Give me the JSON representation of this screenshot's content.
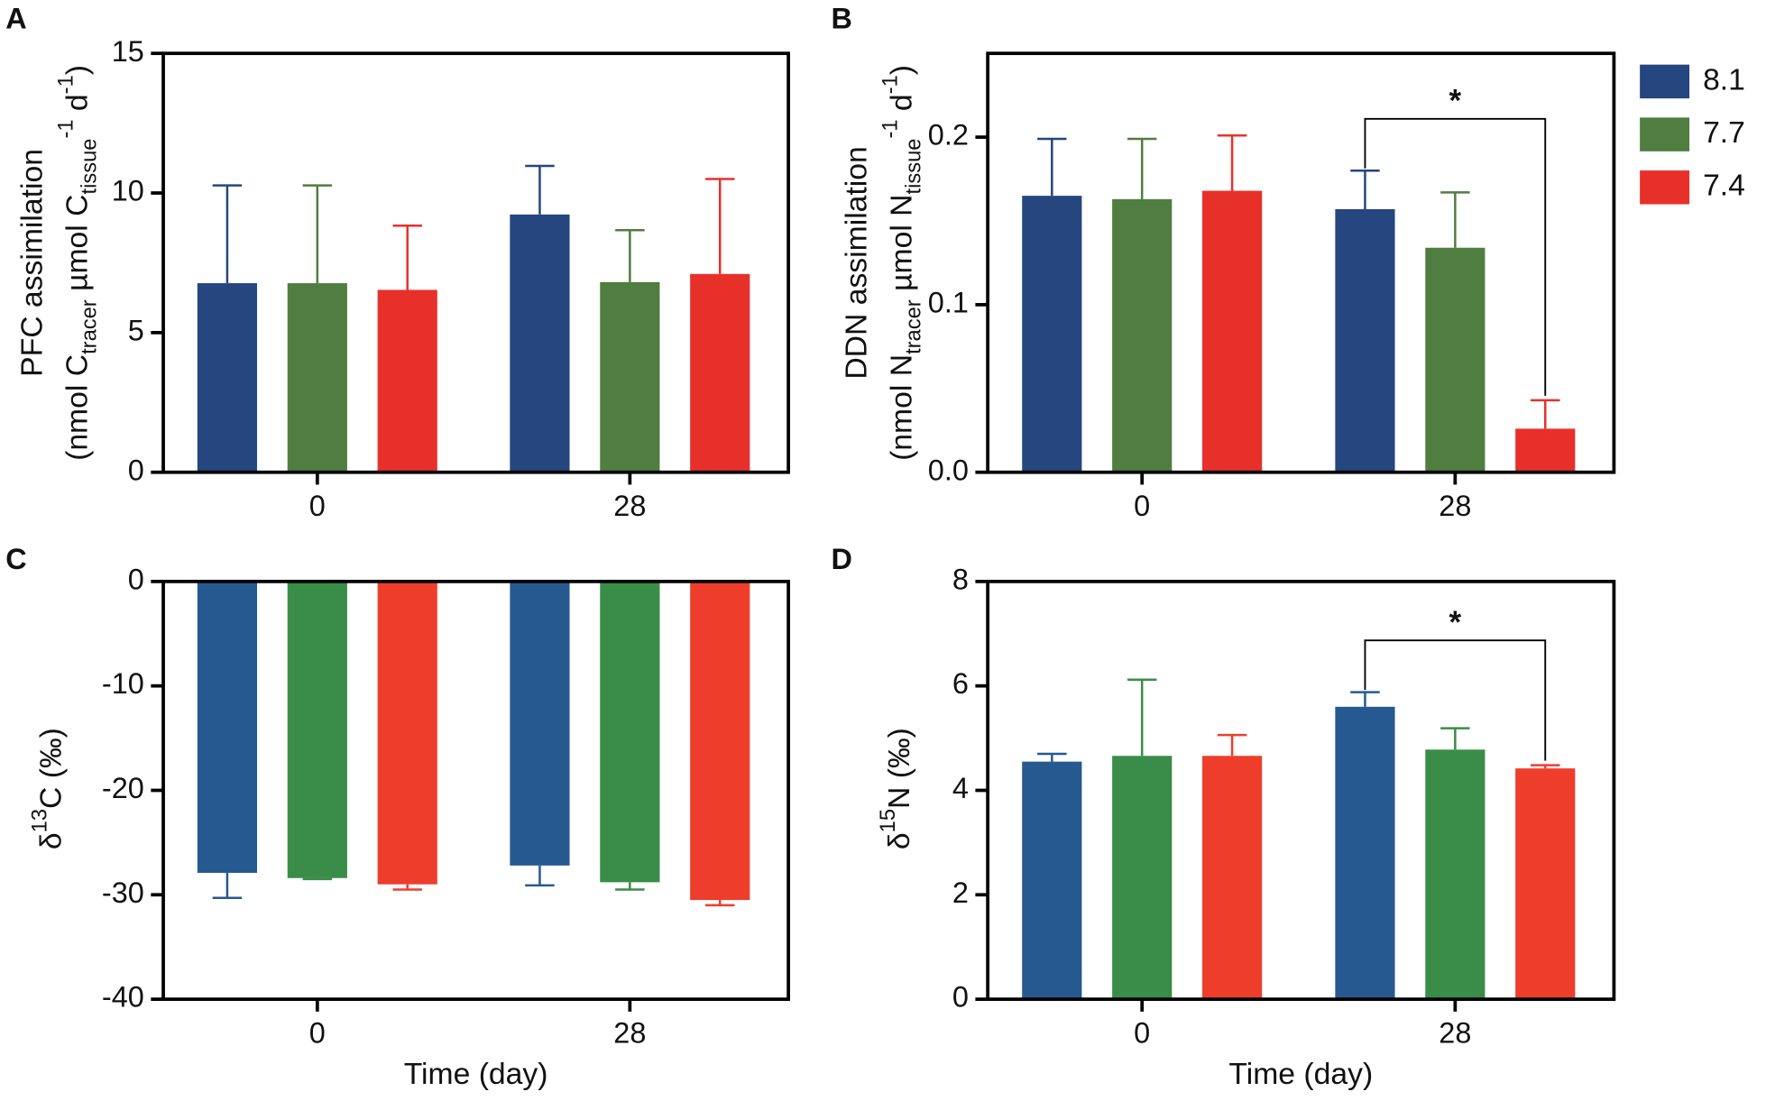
{
  "chart_data": [
    {
      "type": "bar",
      "panel": "A",
      "ylabel": [
        [
          {
            "text": "PFC assimilation"
          }
        ],
        [
          {
            "text": "(nmol C"
          },
          {
            "text": "tracer",
            "sub": true
          },
          {
            "text": " µmol C"
          },
          {
            "text": "tissue",
            "sub": true
          },
          {
            "text": "-1",
            "sup": true
          },
          {
            "text": " d"
          },
          {
            "text": "-1",
            "sup": true
          },
          {
            "text": ")"
          }
        ]
      ],
      "categories": [
        "0",
        "28"
      ],
      "ylim": [
        0,
        15
      ],
      "yticks": [
        0,
        5,
        10,
        15
      ],
      "series": [
        {
          "color": "#25467f",
          "values": [
            6.77,
            9.23
          ],
          "errors": [
            3.5,
            1.74
          ]
        },
        {
          "color": "#507d40",
          "values": [
            6.77,
            6.81
          ],
          "errors": [
            3.5,
            1.86
          ]
        },
        {
          "color": "#e8302b",
          "values": [
            6.53,
            7.1
          ],
          "errors": [
            2.3,
            3.4
          ]
        }
      ]
    },
    {
      "type": "bar",
      "panel": "B",
      "ylabel": [
        [
          {
            "text": "DDN assimilation"
          }
        ],
        [
          {
            "text": "(nmol N"
          },
          {
            "text": "tracer",
            "sub": true
          },
          {
            "text": " µmol N"
          },
          {
            "text": "tissue",
            "sub": true
          },
          {
            "text": "-1",
            "sup": true
          },
          {
            "text": " d"
          },
          {
            "text": "-1",
            "sup": true
          },
          {
            "text": ")"
          }
        ]
      ],
      "categories": [
        "0",
        "28"
      ],
      "ylim": [
        0,
        0.25
      ],
      "yticks": [
        {
          "value": 0,
          "label": "0.0"
        },
        0.1,
        0.2
      ],
      "legend": "right",
      "series": [
        {
          "name": "8.1",
          "color": "#25467f",
          "values": [
            0.165,
            0.157
          ],
          "errors": [
            0.034,
            0.023
          ]
        },
        {
          "name": "7.7",
          "color": "#507d40",
          "values": [
            0.163,
            0.134
          ],
          "errors": [
            0.036,
            0.033
          ]
        },
        {
          "name": "7.4",
          "color": "#e8302b",
          "values": [
            0.168,
            0.026
          ],
          "errors": [
            0.033,
            0.017
          ]
        }
      ],
      "annotations": [
        {
          "text": "*",
          "from": [
            0,
            1
          ],
          "to": [
            2,
            1
          ]
        }
      ]
    },
    {
      "type": "bar",
      "panel": "C",
      "ylabel": [
        [
          {
            "text": "δ"
          },
          {
            "text": "13",
            "sup": true
          },
          {
            "text": "C (‰)"
          }
        ]
      ],
      "xlabel": "Time (day)",
      "categories": [
        "0",
        "28"
      ],
      "ylim": [
        -40,
        0
      ],
      "yticks": [
        -40,
        -30,
        -20,
        -10,
        0
      ],
      "series": [
        {
          "color": "#26598f",
          "values": [
            -27.9,
            -27.2
          ],
          "errors": [
            2.4,
            1.9
          ]
        },
        {
          "color": "#3a8d48",
          "values": [
            -28.4,
            -28.8
          ],
          "errors": [
            0.1,
            0.7
          ]
        },
        {
          "color": "#ee3e2b",
          "values": [
            -29.0,
            -30.5
          ],
          "errors": [
            0.5,
            0.5
          ]
        }
      ]
    },
    {
      "type": "bar",
      "panel": "D",
      "ylabel": [
        [
          {
            "text": "δ"
          },
          {
            "text": "15",
            "sup": true
          },
          {
            "text": "N (‰)"
          }
        ]
      ],
      "xlabel": "Time (day)",
      "categories": [
        "0",
        "28"
      ],
      "ylim": [
        0,
        8
      ],
      "yticks": [
        0,
        2,
        4,
        6,
        8
      ],
      "series": [
        {
          "color": "#26598f",
          "values": [
            4.55,
            5.6
          ],
          "errors": [
            0.15,
            0.28
          ]
        },
        {
          "color": "#3a8d48",
          "values": [
            4.66,
            4.78
          ],
          "errors": [
            1.46,
            0.41
          ]
        },
        {
          "color": "#ee3e2b",
          "values": [
            4.66,
            4.42
          ],
          "errors": [
            0.4,
            0.06
          ]
        }
      ],
      "annotations": [
        {
          "text": "*",
          "from": [
            0,
            1
          ],
          "to": [
            2,
            1
          ]
        }
      ]
    }
  ]
}
